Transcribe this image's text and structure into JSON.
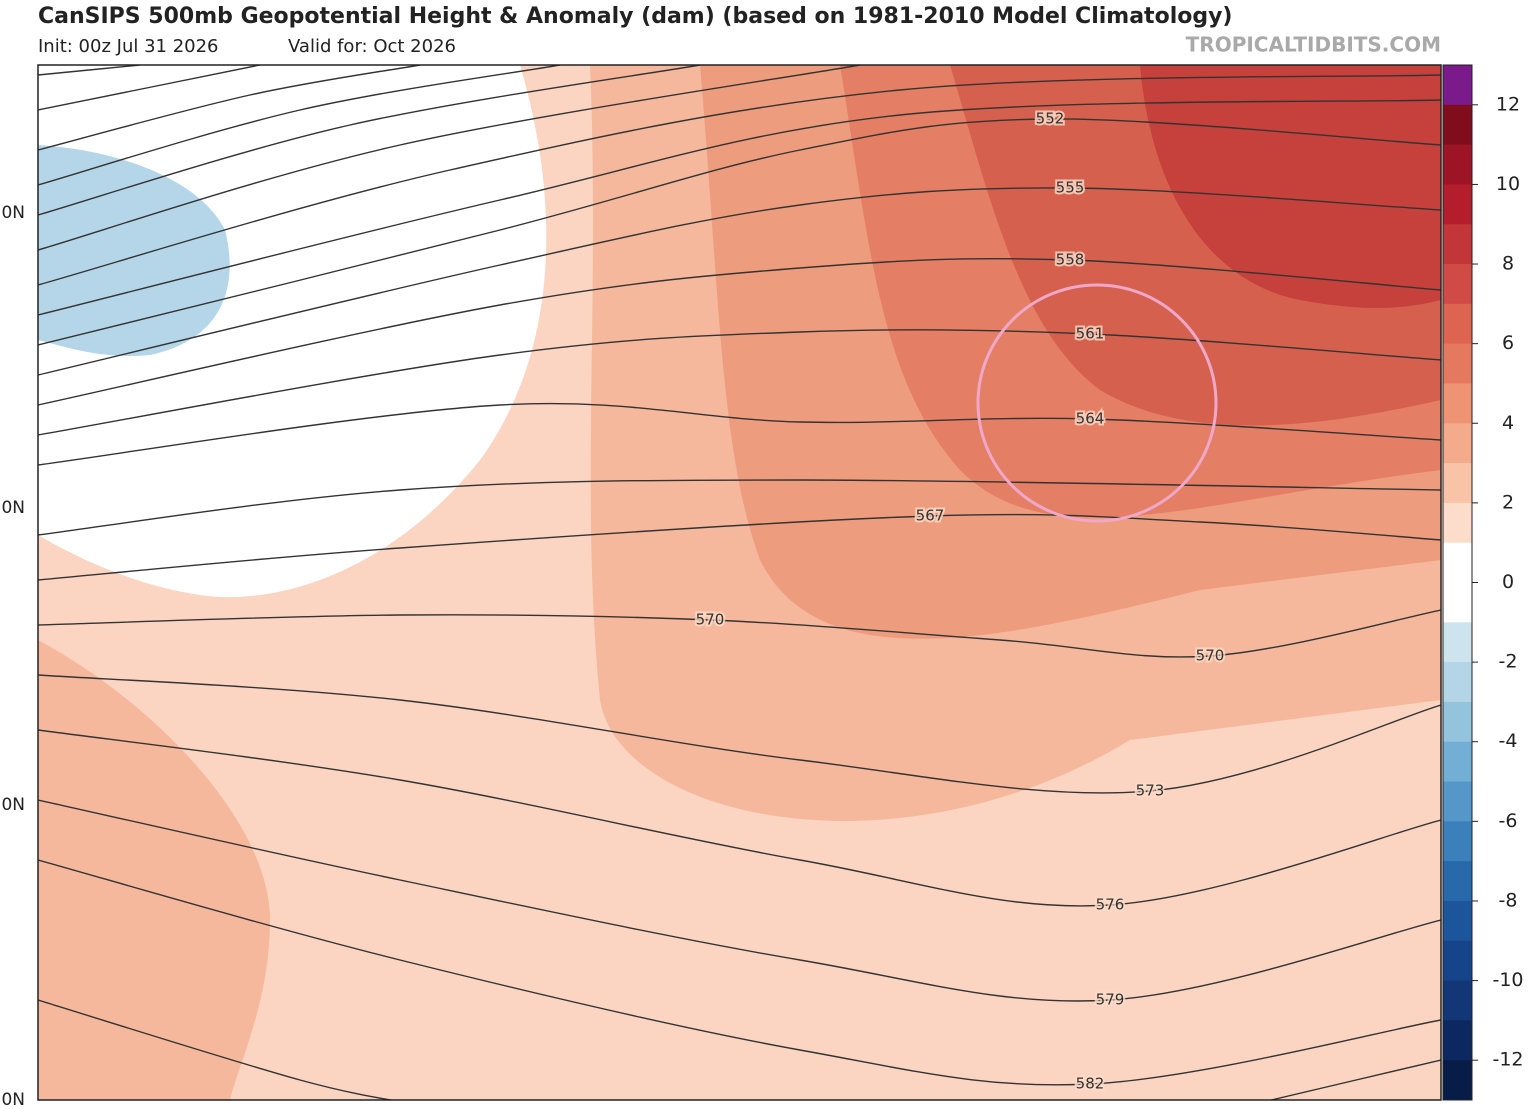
{
  "header": {
    "title": "CanSIPS 500mb Geopotential Height & Anomaly (dam) (based on 1981-2010 Model Climatology)",
    "init": "Init: 00z Jul 31 2026",
    "valid": "Valid for: Oct 2026",
    "source": "TROPICALTIDBITS.COM"
  },
  "map": {
    "lat_labels": [
      "0N",
      "0N",
      "0N",
      "0N"
    ],
    "contour_labels": [
      552,
      555,
      558,
      561,
      564,
      567,
      570,
      570,
      573,
      576,
      579,
      582
    ]
  },
  "colorbar": {
    "range": [
      -13,
      13
    ],
    "ticks": [
      12,
      10,
      8,
      6,
      4,
      2,
      0,
      -2,
      -4,
      -6,
      -8,
      -10,
      -12
    ],
    "colors": [
      "#7b1a8a",
      "#800d1c",
      "#9d1427",
      "#b31d2c",
      "#c2363a",
      "#d04b45",
      "#dc6450",
      "#e5795f",
      "#ee9474",
      "#f4ab8c",
      "#f8c3a7",
      "#fcdccb",
      "#ffffff",
      "#ffffff",
      "#cde4ef",
      "#b3d5e7",
      "#94c3de",
      "#73afd4",
      "#5597c8",
      "#3b80bb",
      "#2869ac",
      "#1c559b",
      "#16448a",
      "#123676",
      "#0d2860",
      "#081c48"
    ]
  }
}
